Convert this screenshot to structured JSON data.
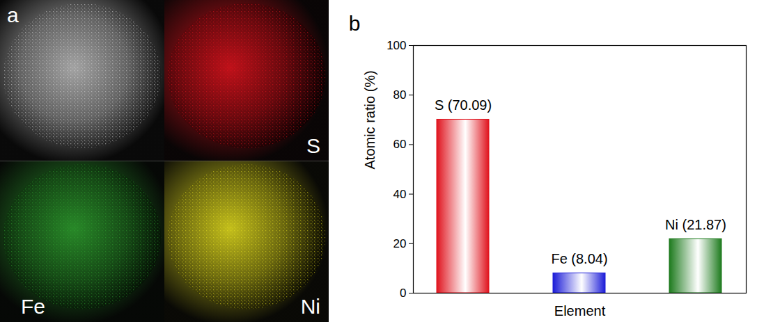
{
  "panel_a": {
    "letter": "a",
    "maps": [
      {
        "label": "S",
        "color": "#e0141e"
      },
      {
        "label": "Fe",
        "color": "#2fa02f"
      },
      {
        "label": "Ni",
        "color": "#e6e020"
      }
    ]
  },
  "chart_data": {
    "type": "bar",
    "panel": "b",
    "x_label": "Element",
    "y_label": "Atomic ratio (%)",
    "categories": [
      "S",
      "Fe",
      "Ni"
    ],
    "values": [
      70.09,
      8.04,
      21.87
    ],
    "value_labels": [
      "S (70.09)",
      "Fe (8.04)",
      "Ni (21.87)"
    ],
    "colors": [
      "#e0141e",
      "#1c1cd8",
      "#1e7b1e"
    ],
    "ylim": [
      0,
      100
    ],
    "yticks": [
      0,
      20,
      40,
      60,
      80,
      100
    ],
    "data_labels": true,
    "tick_labels": "y",
    "grid": false
  }
}
